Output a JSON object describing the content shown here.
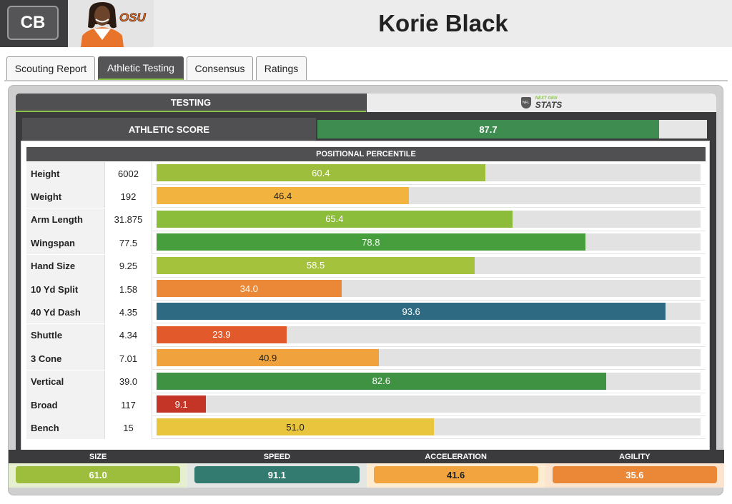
{
  "header": {
    "position": "CB",
    "player_name": "Korie Black",
    "school_logo": "OSU"
  },
  "tabs": [
    {
      "label": "Scouting Report",
      "active": false
    },
    {
      "label": "Athletic Testing",
      "active": true
    },
    {
      "label": "Consensus",
      "active": false
    },
    {
      "label": "Ratings",
      "active": false
    }
  ],
  "subtabs": {
    "testing": "TESTING",
    "ngs_small": "NEXT GEN",
    "ngs_big": "STATS",
    "ngs_shield": "NFL"
  },
  "athletic_score": {
    "label": "ATHLETIC SCORE",
    "value": "87.7",
    "percent": 87.7,
    "color": "#3e8c50"
  },
  "percentile_header": "POSITIONAL PERCENTILE",
  "metrics": [
    {
      "name": "Height",
      "value": "6002",
      "percentile": "60.4",
      "pct": 60.4,
      "color": "#9dbd3c",
      "text_color": "#ffffff"
    },
    {
      "name": "Weight",
      "value": "192",
      "percentile": "46.4",
      "pct": 46.4,
      "color": "#f2b43f",
      "text_color": "#222222"
    },
    {
      "name": "Arm Length",
      "value": "31.875",
      "percentile": "65.4",
      "pct": 65.4,
      "color": "#8cbd3a",
      "text_color": "#ffffff"
    },
    {
      "name": "Wingspan",
      "value": "77.5",
      "percentile": "78.8",
      "pct": 78.8,
      "color": "#479e3d",
      "text_color": "#ffffff"
    },
    {
      "name": "Hand Size",
      "value": "9.25",
      "percentile": "58.5",
      "pct": 58.5,
      "color": "#a5c23c",
      "text_color": "#ffffff"
    },
    {
      "name": "10 Yd Split",
      "value": "1.58",
      "percentile": "34.0",
      "pct": 34.0,
      "color": "#ea8838",
      "text_color": "#ffffff"
    },
    {
      "name": "40 Yd Dash",
      "value": "4.35",
      "percentile": "93.6",
      "pct": 93.6,
      "color": "#2e6b83",
      "text_color": "#ffffff"
    },
    {
      "name": "Shuttle",
      "value": "4.34",
      "percentile": "23.9",
      "pct": 23.9,
      "color": "#e2592c",
      "text_color": "#ffffff"
    },
    {
      "name": "3 Cone",
      "value": "7.01",
      "percentile": "40.9",
      "pct": 40.9,
      "color": "#f0a23c",
      "text_color": "#222222"
    },
    {
      "name": "Vertical",
      "value": "39.0",
      "percentile": "82.6",
      "pct": 82.6,
      "color": "#3e9242",
      "text_color": "#ffffff"
    },
    {
      "name": "Broad",
      "value": "117",
      "percentile": "9.1",
      "pct": 9.1,
      "color": "#c43527",
      "text_color": "#ffffff"
    },
    {
      "name": "Bench",
      "value": "15",
      "percentile": "51.0",
      "pct": 51.0,
      "color": "#e9c53e",
      "text_color": "#222222"
    }
  ],
  "summary": [
    {
      "label": "SIZE",
      "value": "61.0",
      "color": "#9dbd3c",
      "bg": "#e6efcf",
      "text_color": "#ffffff"
    },
    {
      "label": "SPEED",
      "value": "91.1",
      "color": "#337a70",
      "bg": "#e4e6e4",
      "text_color": "#ffffff"
    },
    {
      "label": "ACCELERATION",
      "value": "41.6",
      "color": "#f2a43f",
      "bg": "#fdebd2",
      "text_color": "#222222"
    },
    {
      "label": "AGILITY",
      "value": "35.6",
      "color": "#ea8838",
      "bg": "#fbe4d0",
      "text_color": "#ffffff"
    }
  ]
}
